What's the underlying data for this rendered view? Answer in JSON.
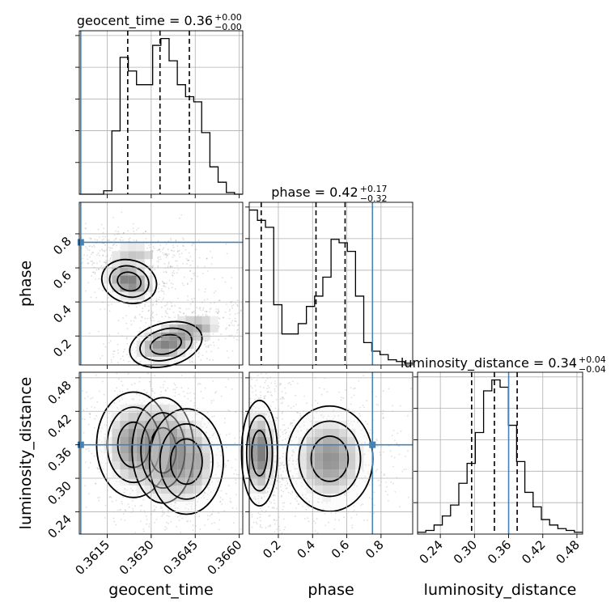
{
  "chart_data": {
    "type": "corner",
    "parameters": [
      "geocent_time",
      "phase",
      "luminosity_distance"
    ],
    "axis_labels": {
      "geocent_time": "geocent_time",
      "phase": "phase",
      "luminosity_distance": "luminosity_distance"
    },
    "titles": [
      {
        "param": "geocent_time",
        "text": "geocent_time = 0.36",
        "plus": "+0.00",
        "minus": "−0.00"
      },
      {
        "param": "phase",
        "text": "phase = 0.42",
        "plus": "+0.17",
        "minus": "−0.32"
      },
      {
        "param": "luminosity_distance",
        "text": "luminosity_distance = 0.34",
        "plus": "+0.04",
        "minus": "−0.04"
      }
    ],
    "ranges": {
      "geocent_time": [
        0.36055,
        0.36612
      ],
      "phase": [
        0.03,
        0.985
      ],
      "luminosity_distance": [
        0.2,
        0.49
      ]
    },
    "ticks": {
      "geocent_time": {
        "values": [
          0.3615,
          0.363,
          0.3645,
          0.366
        ],
        "labels": [
          "0.3615",
          "0.3630",
          "0.3645",
          "0.3660"
        ]
      },
      "phase": {
        "values": [
          0.2,
          0.4,
          0.6,
          0.8
        ],
        "labels": [
          "0.2",
          "0.4",
          "0.6",
          "0.8"
        ]
      },
      "luminosity_distance": {
        "values": [
          0.24,
          0.3,
          0.36,
          0.42,
          0.48
        ],
        "labels": [
          "0.24",
          "0.30",
          "0.36",
          "0.42",
          "0.48"
        ]
      }
    },
    "truths": {
      "geocent_time": 0.3606,
      "phase": 0.75,
      "luminosity_distance": 0.36
    },
    "quantiles": {
      "geocent_time": [
        0.3622,
        0.3633,
        0.3643
      ],
      "phase": [
        0.1,
        0.42,
        0.59
      ],
      "luminosity_distance": [
        0.295,
        0.335,
        0.375
      ]
    },
    "histograms": {
      "geocent_time": {
        "edges": [
          0.36055,
          0.36083,
          0.3611,
          0.36138,
          0.36166,
          0.36194,
          0.36222,
          0.3625,
          0.36278,
          0.36305,
          0.36333,
          0.36361,
          0.36389,
          0.36417,
          0.36445,
          0.36472,
          0.365,
          0.36528,
          0.36556,
          0.36584,
          0.36612
        ],
        "counts": [
          0,
          0,
          0,
          2,
          37,
          80,
          72,
          64,
          64,
          87,
          91,
          78,
          64,
          57,
          54,
          36,
          16,
          7,
          1,
          0
        ]
      },
      "phase": {
        "edges": [
          0.03,
          0.078,
          0.125,
          0.173,
          0.221,
          0.269,
          0.316,
          0.364,
          0.412,
          0.46,
          0.508,
          0.555,
          0.603,
          0.651,
          0.699,
          0.746,
          0.794,
          0.842,
          0.89,
          0.937,
          0.985
        ],
        "counts": [
          90,
          84,
          80,
          35,
          18,
          18,
          24,
          34,
          40,
          51,
          73,
          71,
          66,
          40,
          13,
          8,
          6,
          3,
          2,
          1
        ]
      },
      "luminosity_distance": {
        "edges": [
          0.2,
          0.2145,
          0.229,
          0.2435,
          0.258,
          0.2725,
          0.287,
          0.3015,
          0.316,
          0.3305,
          0.345,
          0.3595,
          0.374,
          0.3885,
          0.403,
          0.4175,
          0.432,
          0.4465,
          0.461,
          0.4755,
          0.49
        ],
        "counts": [
          1,
          2,
          5,
          10,
          16,
          28,
          39,
          56,
          79,
          85,
          81,
          60,
          40,
          23,
          15,
          8,
          5,
          3,
          2,
          1
        ]
      }
    },
    "grid": true
  }
}
